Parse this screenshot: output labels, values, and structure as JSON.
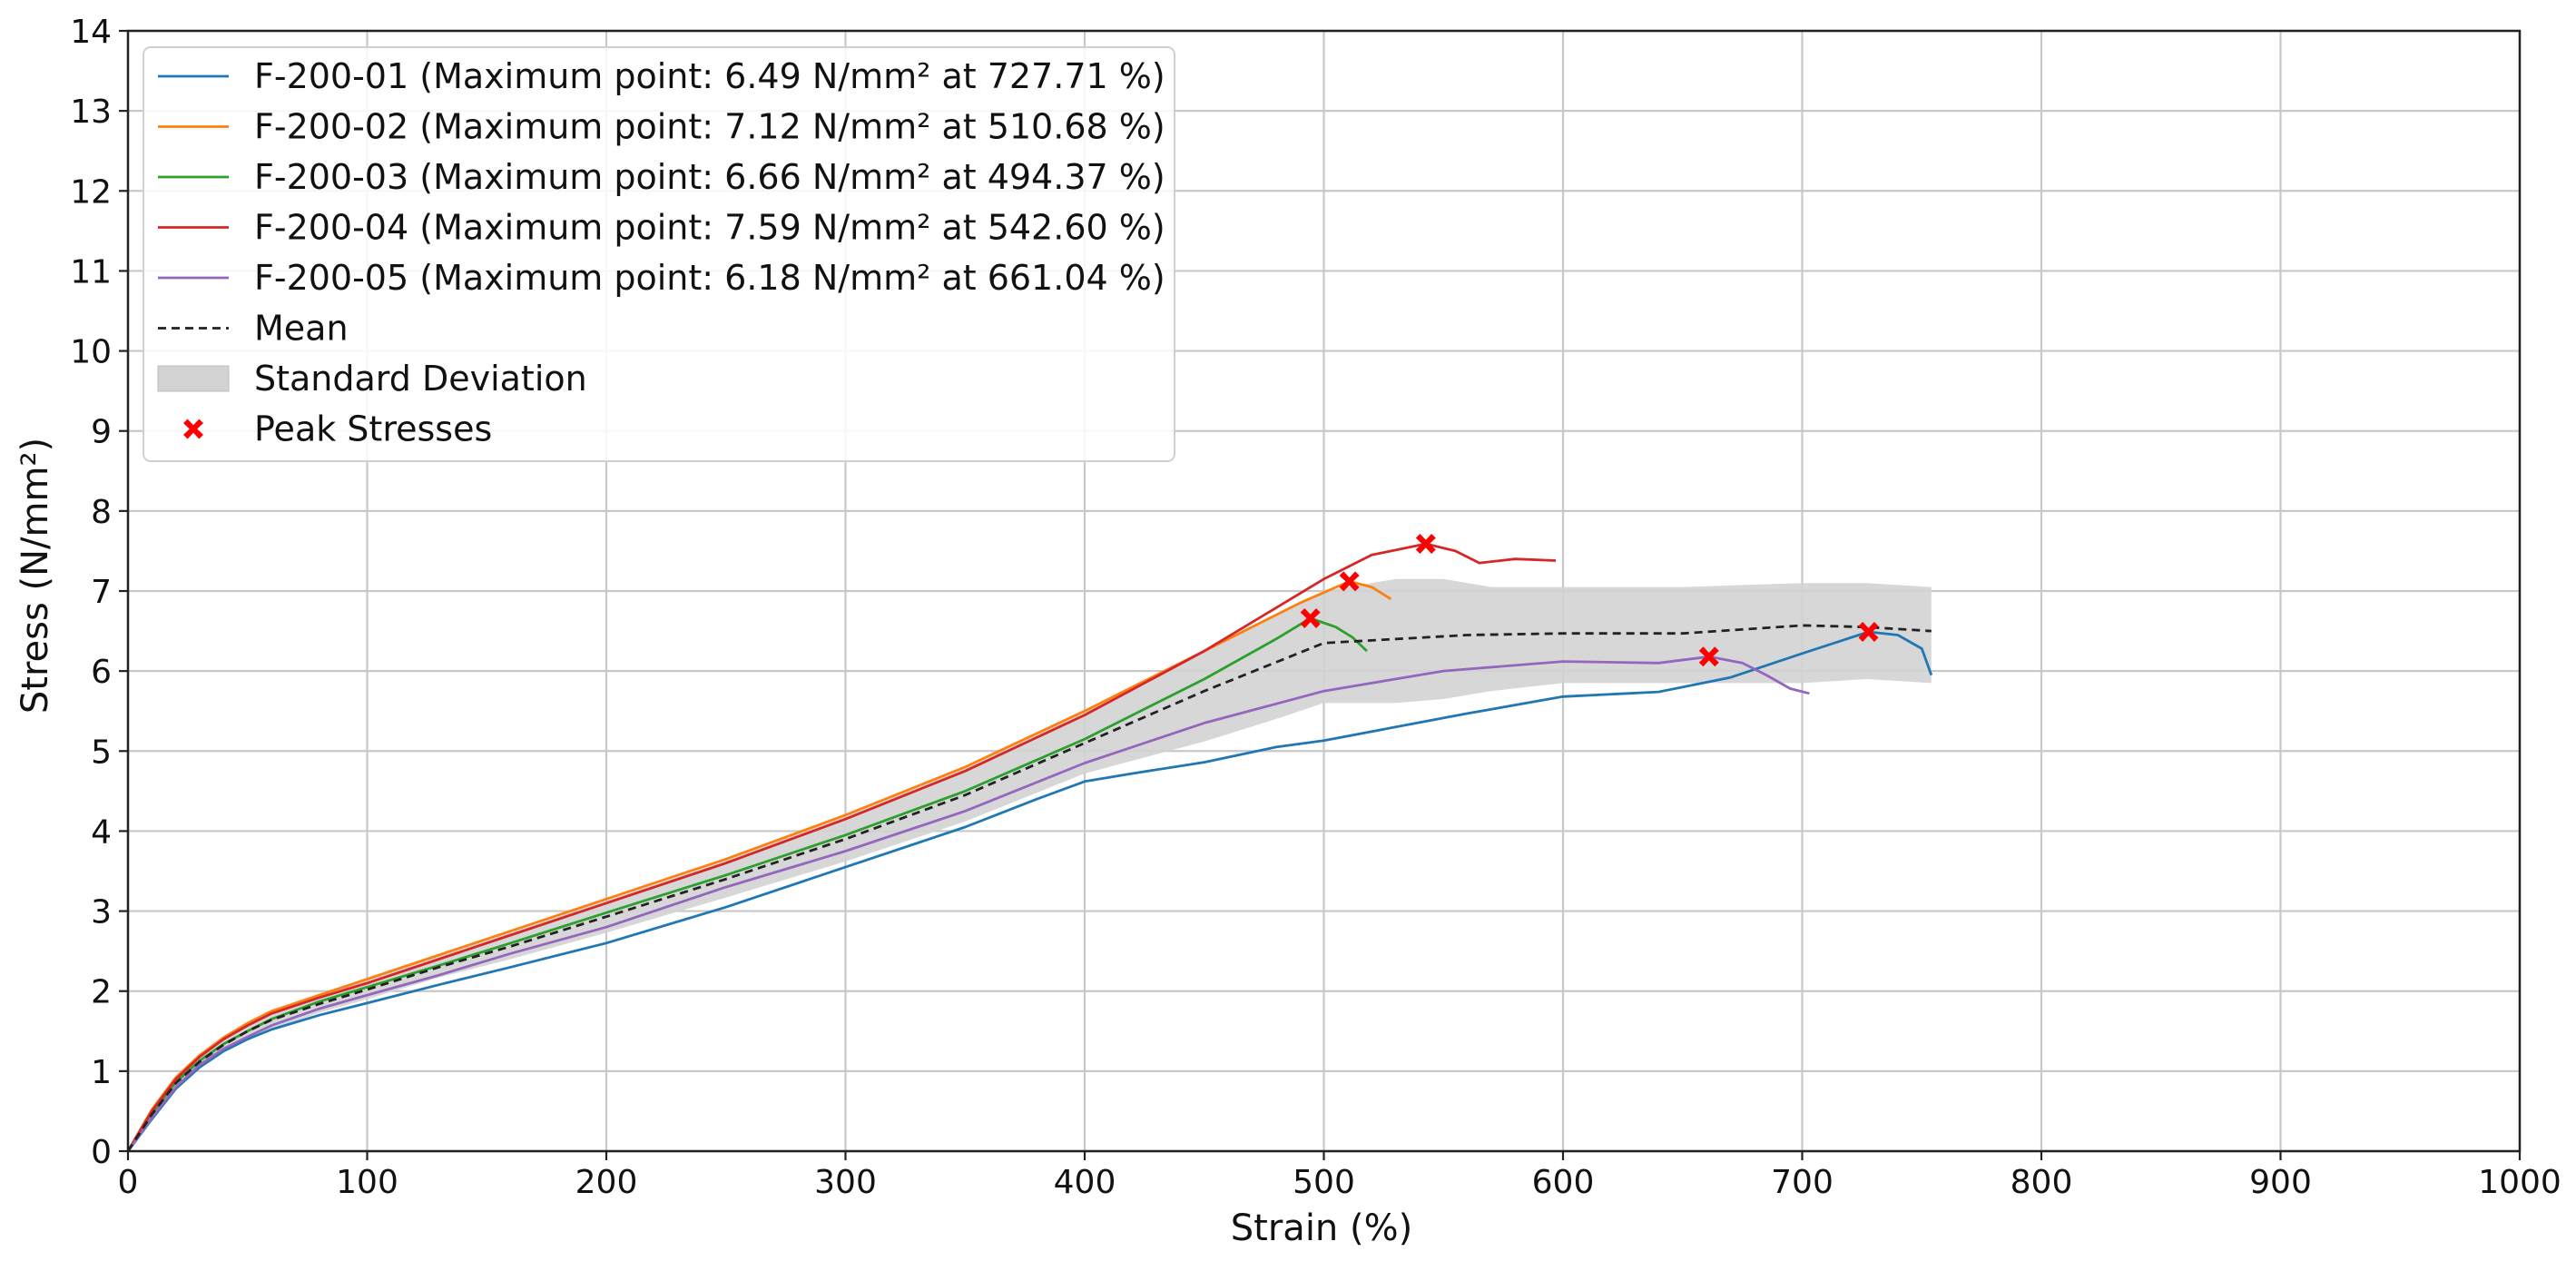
{
  "chart_data": {
    "type": "line",
    "title": "",
    "xlabel": "Strain (%)",
    "ylabel": "Stress (N/mm²)",
    "xlim": [
      0,
      1000
    ],
    "ylim": [
      0,
      14
    ],
    "grid": true,
    "legend_position": "top-left",
    "x_ticks": [
      "0",
      "100",
      "200",
      "300",
      "400",
      "500",
      "600",
      "700",
      "800",
      "900",
      "1000"
    ],
    "y_ticks": [
      "0",
      "1",
      "2",
      "3",
      "4",
      "5",
      "6",
      "7",
      "8",
      "9",
      "10",
      "11",
      "12",
      "13",
      "14"
    ],
    "series": [
      {
        "name": "F-200-01",
        "legend_label": "F-200-01 (Maximum point: 6.49 N/mm² at 727.71 %)",
        "color": "#1f77b4",
        "x": [
          0,
          10,
          20,
          30,
          40,
          50,
          60,
          80,
          100,
          130,
          160,
          200,
          250,
          300,
          350,
          380,
          400,
          420,
          450,
          480,
          500,
          530,
          560,
          600,
          640,
          670,
          700,
          727.71,
          740,
          750,
          754
        ],
        "y": [
          0,
          0.4,
          0.78,
          1.05,
          1.25,
          1.4,
          1.52,
          1.7,
          1.85,
          2.08,
          2.3,
          2.6,
          3.05,
          3.55,
          4.05,
          4.4,
          4.62,
          4.72,
          4.86,
          5.05,
          5.13,
          5.3,
          5.47,
          5.68,
          5.74,
          5.92,
          6.22,
          6.49,
          6.45,
          6.28,
          5.95
        ]
      },
      {
        "name": "F-200-02",
        "legend_label": "F-200-02 (Maximum point: 7.12 N/mm² at 510.68 %)",
        "color": "#ff7f0e",
        "x": [
          0,
          10,
          20,
          30,
          40,
          50,
          60,
          80,
          100,
          130,
          160,
          200,
          250,
          300,
          350,
          400,
          450,
          490,
          510.68,
          520,
          528
        ],
        "y": [
          0,
          0.52,
          0.92,
          1.2,
          1.42,
          1.6,
          1.75,
          1.95,
          2.15,
          2.45,
          2.75,
          3.15,
          3.65,
          4.2,
          4.8,
          5.5,
          6.25,
          6.85,
          7.12,
          7.05,
          6.9
        ]
      },
      {
        "name": "F-200-03",
        "legend_label": "F-200-03 (Maximum point: 6.66 N/mm² at 494.37 %)",
        "color": "#2ca02c",
        "x": [
          0,
          10,
          20,
          30,
          40,
          50,
          60,
          80,
          100,
          130,
          160,
          200,
          250,
          300,
          350,
          400,
          450,
          480,
          494.37,
          505,
          512,
          518
        ],
        "y": [
          0,
          0.47,
          0.86,
          1.13,
          1.34,
          1.5,
          1.65,
          1.87,
          2.05,
          2.32,
          2.6,
          2.98,
          3.45,
          3.95,
          4.5,
          5.15,
          5.9,
          6.4,
          6.66,
          6.55,
          6.42,
          6.25
        ]
      },
      {
        "name": "F-200-04",
        "legend_label": "F-200-04 (Maximum point: 7.59 N/mm² at 542.60 %)",
        "color": "#d62728",
        "x": [
          0,
          10,
          20,
          30,
          40,
          50,
          60,
          80,
          100,
          130,
          160,
          200,
          250,
          300,
          350,
          400,
          450,
          500,
          520,
          542.6,
          555,
          565,
          580,
          597
        ],
        "y": [
          0,
          0.5,
          0.9,
          1.18,
          1.4,
          1.57,
          1.72,
          1.92,
          2.1,
          2.4,
          2.7,
          3.1,
          3.6,
          4.15,
          4.75,
          5.45,
          6.25,
          7.15,
          7.45,
          7.59,
          7.5,
          7.35,
          7.4,
          7.38
        ]
      },
      {
        "name": "F-200-05",
        "legend_label": "F-200-05 (Maximum point: 6.18 N/mm² at 661.04 %)",
        "color": "#9467bd",
        "x": [
          0,
          10,
          20,
          30,
          40,
          50,
          60,
          80,
          100,
          130,
          160,
          200,
          250,
          300,
          350,
          400,
          450,
          500,
          550,
          600,
          640,
          661.04,
          675,
          685,
          695,
          703
        ],
        "y": [
          0,
          0.42,
          0.8,
          1.08,
          1.28,
          1.43,
          1.57,
          1.78,
          1.95,
          2.2,
          2.47,
          2.8,
          3.3,
          3.75,
          4.25,
          4.85,
          5.35,
          5.75,
          6.0,
          6.12,
          6.1,
          6.18,
          6.1,
          5.95,
          5.78,
          5.72
        ]
      }
    ],
    "mean": {
      "name": "Mean",
      "color": "#222222",
      "x": [
        0,
        10,
        20,
        30,
        40,
        50,
        60,
        80,
        100,
        130,
        160,
        200,
        250,
        300,
        350,
        400,
        450,
        500,
        530,
        560,
        600,
        650,
        700,
        727,
        754
      ],
      "y": [
        0,
        0.46,
        0.85,
        1.12,
        1.33,
        1.5,
        1.64,
        1.84,
        2.02,
        2.3,
        2.56,
        2.93,
        3.4,
        3.9,
        4.45,
        5.1,
        5.75,
        6.35,
        6.4,
        6.45,
        6.47,
        6.47,
        6.57,
        6.55,
        6.5
      ]
    },
    "std_band": {
      "name": "Standard Deviation",
      "color": "#d3d3d3",
      "x": [
        0,
        10,
        20,
        30,
        40,
        50,
        60,
        80,
        100,
        130,
        160,
        200,
        250,
        300,
        350,
        400,
        450,
        480,
        500,
        530,
        550,
        570,
        600,
        650,
        700,
        727,
        754
      ],
      "upper": [
        0,
        0.52,
        0.93,
        1.2,
        1.42,
        1.6,
        1.75,
        1.95,
        2.13,
        2.43,
        2.73,
        3.13,
        3.63,
        4.18,
        4.78,
        5.48,
        6.25,
        6.7,
        7.0,
        7.15,
        7.15,
        7.05,
        7.05,
        7.05,
        7.1,
        7.1,
        7.05
      ],
      "lower": [
        0,
        0.4,
        0.77,
        1.04,
        1.24,
        1.39,
        1.52,
        1.73,
        1.9,
        2.17,
        2.4,
        2.73,
        3.17,
        3.62,
        4.12,
        4.72,
        5.12,
        5.4,
        5.6,
        5.6,
        5.65,
        5.75,
        5.85,
        5.85,
        5.85,
        5.9,
        5.85
      ]
    },
    "peaks": {
      "name": "Peak Stresses",
      "color": "#ff0000",
      "x": [
        727.71,
        510.68,
        494.37,
        542.6,
        661.04
      ],
      "y": [
        6.49,
        7.12,
        6.66,
        7.59,
        6.18
      ]
    },
    "legend": [
      {
        "label": "F-200-01 (Maximum point: 6.49 N/mm² at 727.71 %)",
        "kind": "line",
        "color": "#1f77b4"
      },
      {
        "label": "F-200-02 (Maximum point: 7.12 N/mm² at 510.68 %)",
        "kind": "line",
        "color": "#ff7f0e"
      },
      {
        "label": "F-200-03 (Maximum point: 6.66 N/mm² at 494.37 %)",
        "kind": "line",
        "color": "#2ca02c"
      },
      {
        "label": "F-200-04 (Maximum point: 7.59 N/mm² at 542.60 %)",
        "kind": "line",
        "color": "#d62728"
      },
      {
        "label": "F-200-05 (Maximum point: 6.18 N/mm² at 661.04 %)",
        "kind": "line",
        "color": "#9467bd"
      },
      {
        "label": "Mean",
        "kind": "dashed",
        "color": "#222222"
      },
      {
        "label": "Standard Deviation",
        "kind": "band",
        "color": "#d3d3d3"
      },
      {
        "label": "Peak Stresses",
        "kind": "marker",
        "color": "#ff0000"
      }
    ]
  }
}
